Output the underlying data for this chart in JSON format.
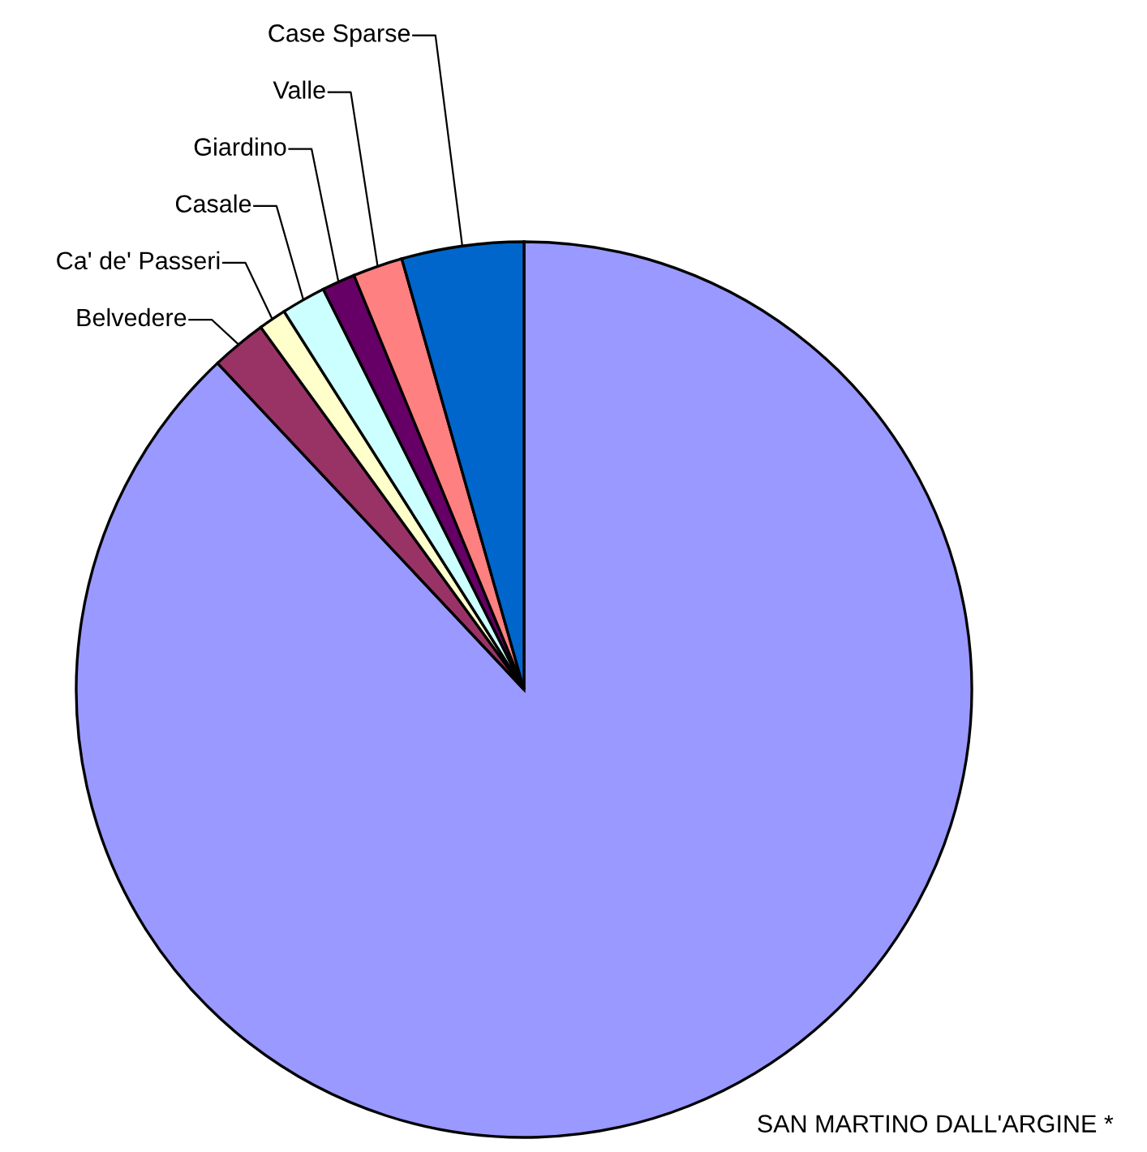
{
  "chart_data": {
    "type": "pie",
    "categories": [
      "SAN MARTINO DALL'ARGINE *",
      "Belvedere",
      "Ca' de' Passeri",
      "Casale",
      "Giardino",
      "Valle",
      "Case Sparse"
    ],
    "values": [
      88,
      2,
      1,
      1.6,
      1.2,
      1.8,
      4.4
    ],
    "colors": [
      "#9999ff",
      "#993366",
      "#ffffcc",
      "#ccffff",
      "#660066",
      "#ff8080",
      "#0066cc"
    ],
    "legend": false
  }
}
